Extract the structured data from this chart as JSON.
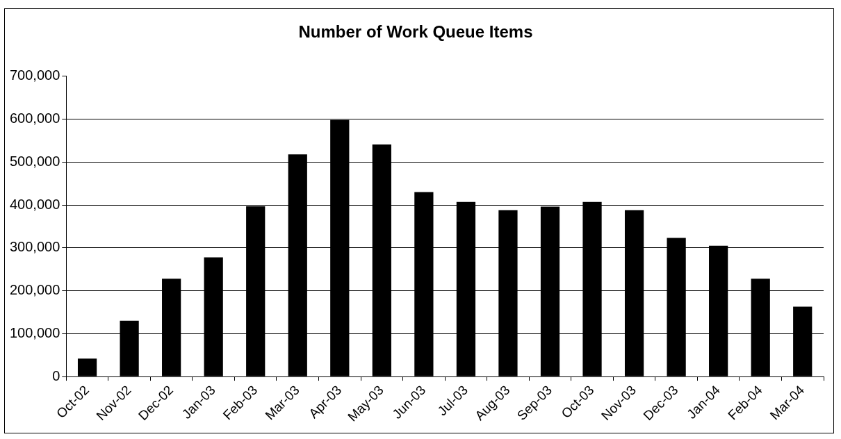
{
  "chart_data": {
    "type": "bar",
    "title": "Number of Work Queue Items",
    "categories": [
      "Oct-02",
      "Nov-02",
      "Dec-02",
      "Jan-03",
      "Feb-03",
      "Mar-03",
      "Apr-03",
      "May-03",
      "Jun-03",
      "Jul-03",
      "Aug-03",
      "Sep-03",
      "Oct-03",
      "Nov-03",
      "Dec-03",
      "Jan-04",
      "Feb-04",
      "Mar-04"
    ],
    "values": [
      42000,
      130000,
      228000,
      278000,
      397000,
      518000,
      598000,
      541000,
      430000,
      407000,
      388000,
      396000,
      407000,
      388000,
      323000,
      305000,
      228000,
      163000
    ],
    "color": "#000000",
    "ylim": [
      0,
      700000
    ],
    "yticks": [
      {
        "value": 0,
        "label": "0"
      },
      {
        "value": 100000,
        "label": "100,000"
      },
      {
        "value": 200000,
        "label": "200,000"
      },
      {
        "value": 300000,
        "label": "300,000"
      },
      {
        "value": 400000,
        "label": "400,000"
      },
      {
        "value": 500000,
        "label": "500,000"
      },
      {
        "value": 600000,
        "label": "600,000"
      },
      {
        "value": 700000,
        "label": "700,000"
      }
    ],
    "grid": "y",
    "legend": false
  }
}
